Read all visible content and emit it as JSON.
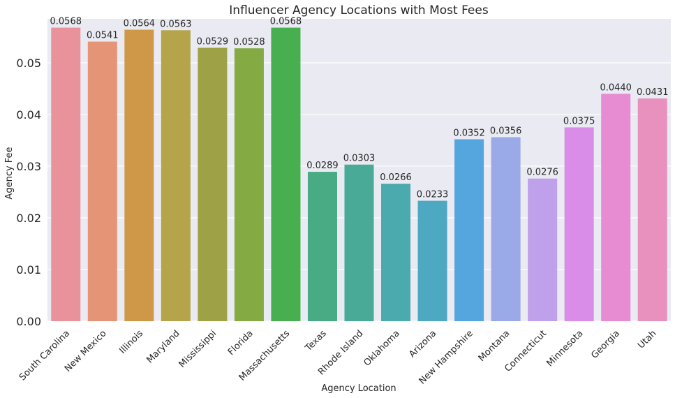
{
  "chart_data": {
    "type": "bar",
    "title": "Influencer Agency Locations with Most Fees",
    "xlabel": "Agency Location",
    "ylabel": "Agency Fee",
    "ylim": [
      0,
      0.0585
    ],
    "yticks": [
      "0.00",
      "0.01",
      "0.02",
      "0.03",
      "0.04",
      "0.05"
    ],
    "grid": true,
    "categories": [
      "South Carolina",
      "New Mexico",
      "Illinois",
      "Maryland",
      "Mississippi",
      "Florida",
      "Massachusetts",
      "Texas",
      "Rhode Island",
      "Oklahoma",
      "Arizona",
      "New Hampshire",
      "Montana",
      "Connecticut",
      "Minnesota",
      "Georgia",
      "Utah"
    ],
    "values": [
      0.0568,
      0.0541,
      0.0564,
      0.0563,
      0.0529,
      0.0528,
      0.0568,
      0.0289,
      0.0303,
      0.0266,
      0.0233,
      0.0352,
      0.0356,
      0.0276,
      0.0375,
      0.044,
      0.0431
    ],
    "value_labels": [
      "0.0568",
      "0.0541",
      "0.0564",
      "0.0563",
      "0.0529",
      "0.0528",
      "0.0568",
      "0.0289",
      "0.0303",
      "0.0266",
      "0.0233",
      "0.0352",
      "0.0356",
      "0.0276",
      "0.0375",
      "0.0440",
      "0.0431"
    ],
    "colors": [
      "#ea929c",
      "#e59575",
      "#cf9848",
      "#b5a449",
      "#9ea145",
      "#84aa44",
      "#47af50",
      "#48ab84",
      "#48aa97",
      "#4aaaae",
      "#4da8c1",
      "#55a6df",
      "#9aaae9",
      "#bea1ea",
      "#d98de8",
      "#e78bd2",
      "#e891bf"
    ],
    "background_color": "#eaeaf2",
    "grid_color": "#ffffff"
  }
}
